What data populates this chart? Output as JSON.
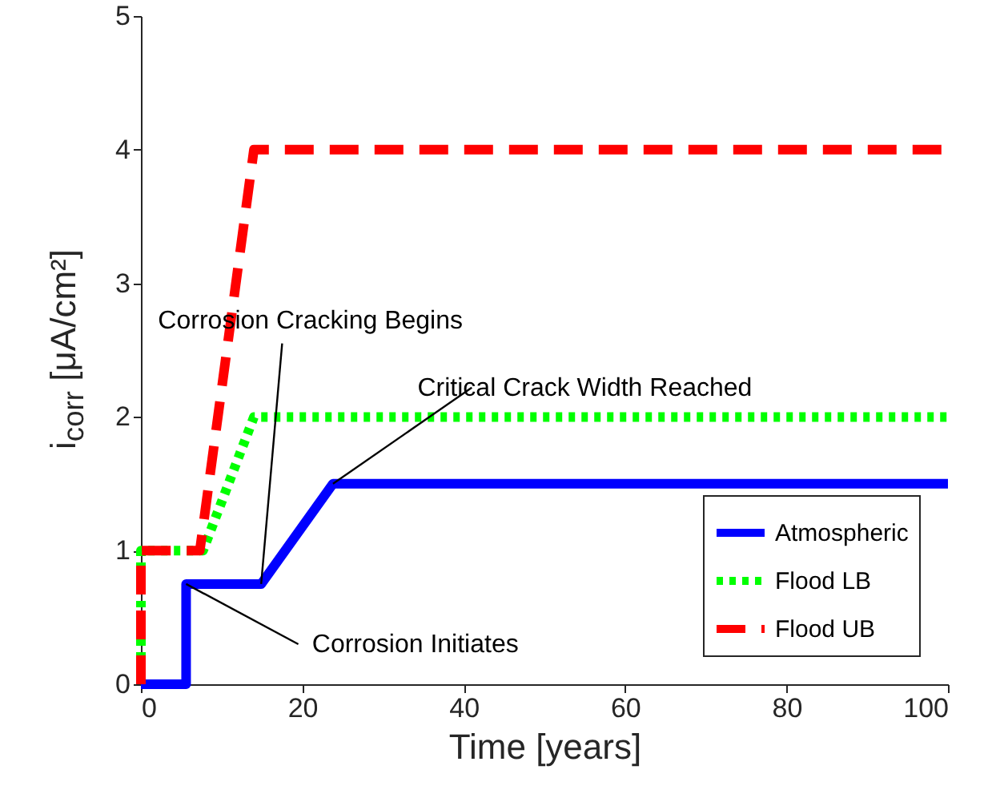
{
  "chart_data": {
    "type": "line",
    "xlabel": "Time [years]",
    "ylabel": "i$_{corr}$  [μA/cm²]",
    "xlim": [
      0,
      100
    ],
    "xticks": [
      0,
      20,
      40,
      60,
      80,
      100
    ],
    "ylim": [
      0,
      5
    ],
    "yticks": [
      0,
      1,
      2,
      3,
      4,
      5
    ],
    "legend": "bottom right",
    "grid": false,
    "marker": "none",
    "series": [
      {
        "name": "Atmospheric",
        "color": "#0000ff",
        "line_style": "solid",
        "x": [
          0,
          5.6,
          5.6,
          14.9,
          23.8,
          100
        ],
        "values": [
          0,
          0,
          0.75,
          0.75,
          1.5,
          1.5
        ]
      },
      {
        "name": "Flood LB",
        "color": "#00ff00",
        "line_style": "dotted",
        "x": [
          0,
          0,
          7.7,
          14,
          100
        ],
        "values": [
          0,
          1,
          1,
          2,
          2
        ]
      },
      {
        "name": "Flood UB",
        "color": "#ff0000",
        "line_style": "dashed",
        "x": [
          0,
          0,
          7.3,
          14,
          100
        ],
        "values": [
          0,
          1,
          1,
          4,
          4
        ]
      }
    ],
    "annotations": [
      {
        "text": "Corrosion Initiates",
        "x": 5.6,
        "y": 0.75
      },
      {
        "text": "Corrosion Cracking Begins",
        "x": 14.9,
        "y": 0.75
      },
      {
        "text": "Critical Crack Width Reached",
        "x": 23.8,
        "y": 1.5
      }
    ]
  }
}
